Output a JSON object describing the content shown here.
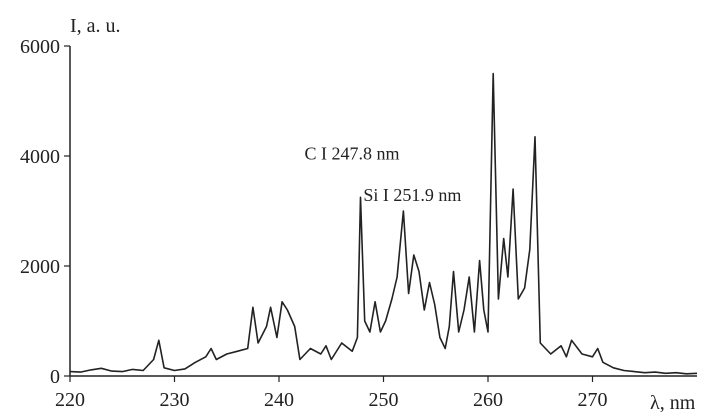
{
  "chart_data": {
    "type": "line",
    "title": "",
    "xlabel": "λ, nm",
    "ylabel": "I, a. u.",
    "xlim": [
      220,
      280
    ],
    "ylim": [
      0,
      6000
    ],
    "x_ticks": [
      220,
      230,
      240,
      250,
      260,
      270
    ],
    "y_ticks": [
      0,
      2000,
      4000,
      6000
    ],
    "grid": false,
    "annotations": [
      {
        "text": "C I 247.8 nm",
        "x": 247.8,
        "y": 3250
      },
      {
        "text": "Si I 251.9 nm",
        "x": 251.9,
        "y": 3000
      }
    ],
    "series": [
      {
        "x": [
          220,
          221,
          222,
          223,
          224,
          225,
          226,
          227,
          228,
          228.5,
          229,
          230,
          231,
          232,
          233,
          233.5,
          234,
          235,
          236,
          237,
          237.5,
          238,
          238.8,
          239.2,
          239.8,
          240.3,
          240.8,
          241.5,
          242,
          243,
          244,
          244.5,
          245,
          246,
          247,
          247.5,
          247.8,
          248.2,
          248.7,
          249.2,
          249.7,
          250.2,
          250.8,
          251.3,
          251.9,
          252.4,
          252.9,
          253.4,
          253.9,
          254.4,
          254.9,
          255.4,
          255.9,
          256.3,
          256.7,
          257.2,
          257.7,
          258.2,
          258.7,
          259.2,
          259.6,
          260,
          260.5,
          261,
          261.5,
          261.9,
          262.4,
          262.9,
          263.5,
          264,
          264.5,
          265,
          266,
          267,
          267.5,
          268,
          269,
          270,
          270.5,
          271,
          272,
          273,
          274,
          275,
          276,
          277,
          278,
          279,
          280
        ],
        "y": [
          80,
          70,
          110,
          140,
          90,
          80,
          120,
          100,
          300,
          650,
          150,
          100,
          130,
          250,
          350,
          500,
          300,
          400,
          450,
          500,
          1250,
          600,
          900,
          1250,
          700,
          1350,
          1200,
          900,
          300,
          500,
          400,
          550,
          300,
          600,
          450,
          700,
          3250,
          1000,
          800,
          1350,
          800,
          1000,
          1400,
          1800,
          3000,
          1500,
          2200,
          1900,
          1200,
          1700,
          1300,
          700,
          500,
          900,
          1900,
          800,
          1200,
          1800,
          800,
          2100,
          1200,
          800,
          5500,
          1400,
          2500,
          1800,
          3400,
          1400,
          1600,
          2300,
          4350,
          600,
          400,
          550,
          350,
          650,
          400,
          350,
          500,
          250,
          150,
          100,
          80,
          60,
          70,
          50,
          60,
          40,
          50
        ]
      }
    ]
  }
}
